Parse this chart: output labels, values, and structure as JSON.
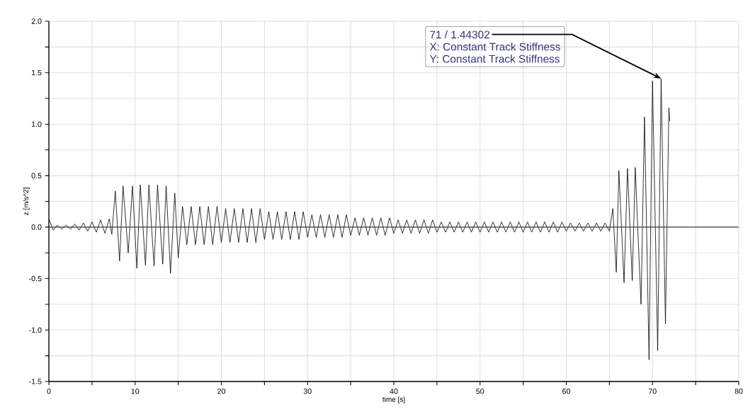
{
  "chart_data": {
    "type": "line",
    "xlabel": "time [s]",
    "ylabel": "z [m/s^2]",
    "xlim": [
      0,
      80
    ],
    "ylim": [
      -1.5,
      2.0
    ],
    "xticks": [
      0,
      {
        "value": 5,
        "label": null
      },
      10,
      {
        "value": 15,
        "label": null
      },
      20,
      {
        "value": 25,
        "label": null
      },
      30,
      {
        "value": 35,
        "label": null
      },
      40,
      {
        "value": 45,
        "label": null
      },
      50,
      {
        "value": 55,
        "label": null
      },
      60,
      {
        "value": 65,
        "label": null
      },
      70,
      {
        "value": 75,
        "label": null
      },
      80
    ],
    "yticks": [
      {
        "value": -1.5,
        "label": "-1.5"
      },
      {
        "value": -1.25,
        "label": null
      },
      {
        "value": -1.0,
        "label": "-1.0"
      },
      {
        "value": -0.75,
        "label": null
      },
      {
        "value": -0.5,
        "label": "-0.5"
      },
      {
        "value": -0.25,
        "label": null
      },
      {
        "value": 0,
        "label": "0.0"
      },
      {
        "value": 0.25,
        "label": null
      },
      {
        "value": 0.5,
        "label": "0.5"
      },
      {
        "value": 0.75,
        "label": null
      },
      {
        "value": 1.0,
        "label": "1.0"
      },
      {
        "value": 1.25,
        "label": null
      },
      {
        "value": 1.5,
        "label": "1.5"
      },
      {
        "value": 1.75,
        "label": null
      },
      {
        "value": 2.0,
        "label": "2.0"
      }
    ],
    "grid": true,
    "marker": "none",
    "line_style": "solid",
    "ref_lines": [
      {
        "axis": "y",
        "value": 0,
        "color": "#404040"
      }
    ],
    "annotations": [
      {
        "text": "71 / 1.44302",
        "x": 71,
        "y": 1.44302
      },
      "X: Constant Track Stiffness",
      "Y: Constant Track Stiffness"
    ],
    "series": [
      {
        "color": "#000000",
        "x": [
          0,
          0.5,
          1,
          1.5,
          2,
          2.5,
          3,
          3.5,
          4,
          4.5,
          5,
          5.5,
          6,
          6.5,
          7,
          7.3,
          7.7,
          8.2,
          8.6,
          9.2,
          9.7,
          10.2,
          10.6,
          11.2,
          11.6,
          12.2,
          12.6,
          13.2,
          13.6,
          14.1,
          14.6,
          15.0,
          15.5,
          16.0,
          16.5,
          17.0,
          17.5,
          18.0,
          18.5,
          19.0,
          19.5,
          20.0,
          20.5,
          21.0,
          21.5,
          22.0,
          22.5,
          23.0,
          23.5,
          24.0,
          24.5,
          25.0,
          25.5,
          26.0,
          26.5,
          27.0,
          27.5,
          28.0,
          28.5,
          29.0,
          29.5,
          30.0,
          30.5,
          31.0,
          31.5,
          32.0,
          32.5,
          33.0,
          33.5,
          34.0,
          34.5,
          35.0,
          35.5,
          36.0,
          36.5,
          37.0,
          37.5,
          38.0,
          38.5,
          39.0,
          39.5,
          40.0,
          40.5,
          41.0,
          41.5,
          42.0,
          42.5,
          43.0,
          43.5,
          44.0,
          44.5,
          45.0,
          45.5,
          46.0,
          46.5,
          47.0,
          47.5,
          48.0,
          48.5,
          49.0,
          49.5,
          50.0,
          50.5,
          51.0,
          51.5,
          52.0,
          52.5,
          53.0,
          53.5,
          54.0,
          54.5,
          55.0,
          55.5,
          56.0,
          56.5,
          57.0,
          57.5,
          58.0,
          58.5,
          59.0,
          59.5,
          60.0,
          60.5,
          61.0,
          61.5,
          62.0,
          62.5,
          63.0,
          63.5,
          64.0,
          64.5,
          65.0,
          65.4,
          65.8,
          66.1,
          66.7,
          67.1,
          67.65,
          68.0,
          68.3,
          68.67,
          69.07,
          69.6,
          70.0,
          70.6,
          71.0,
          71.5,
          71.9,
          72.0
        ],
        "values": [
          0.08,
          -0.03,
          0.02,
          -0.02,
          0.02,
          -0.02,
          0.03,
          -0.03,
          0.04,
          -0.04,
          0.05,
          -0.05,
          0.07,
          -0.06,
          0.08,
          -0.07,
          0.35,
          -0.33,
          0.4,
          -0.25,
          0.4,
          -0.4,
          0.41,
          -0.37,
          0.41,
          -0.38,
          0.41,
          -0.36,
          0.4,
          -0.45,
          0.33,
          -0.3,
          0.2,
          -0.17,
          0.2,
          -0.17,
          0.2,
          -0.17,
          0.2,
          -0.17,
          0.2,
          -0.15,
          0.18,
          -0.15,
          0.18,
          -0.15,
          0.18,
          -0.15,
          0.18,
          -0.15,
          0.18,
          -0.12,
          0.15,
          -0.12,
          0.15,
          -0.12,
          0.15,
          -0.12,
          0.15,
          -0.12,
          0.15,
          -0.1,
          0.12,
          -0.1,
          0.12,
          -0.1,
          0.12,
          -0.1,
          0.12,
          -0.1,
          0.12,
          -0.08,
          0.09,
          -0.08,
          0.09,
          -0.08,
          0.09,
          -0.08,
          0.09,
          -0.08,
          0.09,
          -0.06,
          0.07,
          -0.06,
          0.07,
          -0.06,
          0.07,
          -0.06,
          0.07,
          -0.06,
          0.07,
          -0.05,
          0.05,
          -0.05,
          0.05,
          -0.05,
          0.05,
          -0.05,
          0.05,
          -0.05,
          0.05,
          -0.05,
          0.05,
          -0.05,
          0.05,
          -0.05,
          0.05,
          -0.05,
          0.05,
          -0.05,
          0.05,
          -0.05,
          0.05,
          -0.05,
          0.05,
          -0.05,
          0.05,
          -0.05,
          0.05,
          -0.05,
          0.05,
          -0.04,
          0.04,
          -0.04,
          0.04,
          -0.04,
          0.04,
          -0.04,
          0.04,
          -0.04,
          0.04,
          -0.04,
          0.18,
          -0.44,
          0.55,
          -0.54,
          0.57,
          -0.52,
          0.58,
          -0.04,
          -0.75,
          1.07,
          -1.29,
          1.42,
          -1.2,
          1.44,
          -0.94,
          1.16,
          1.03
        ]
      }
    ]
  }
}
